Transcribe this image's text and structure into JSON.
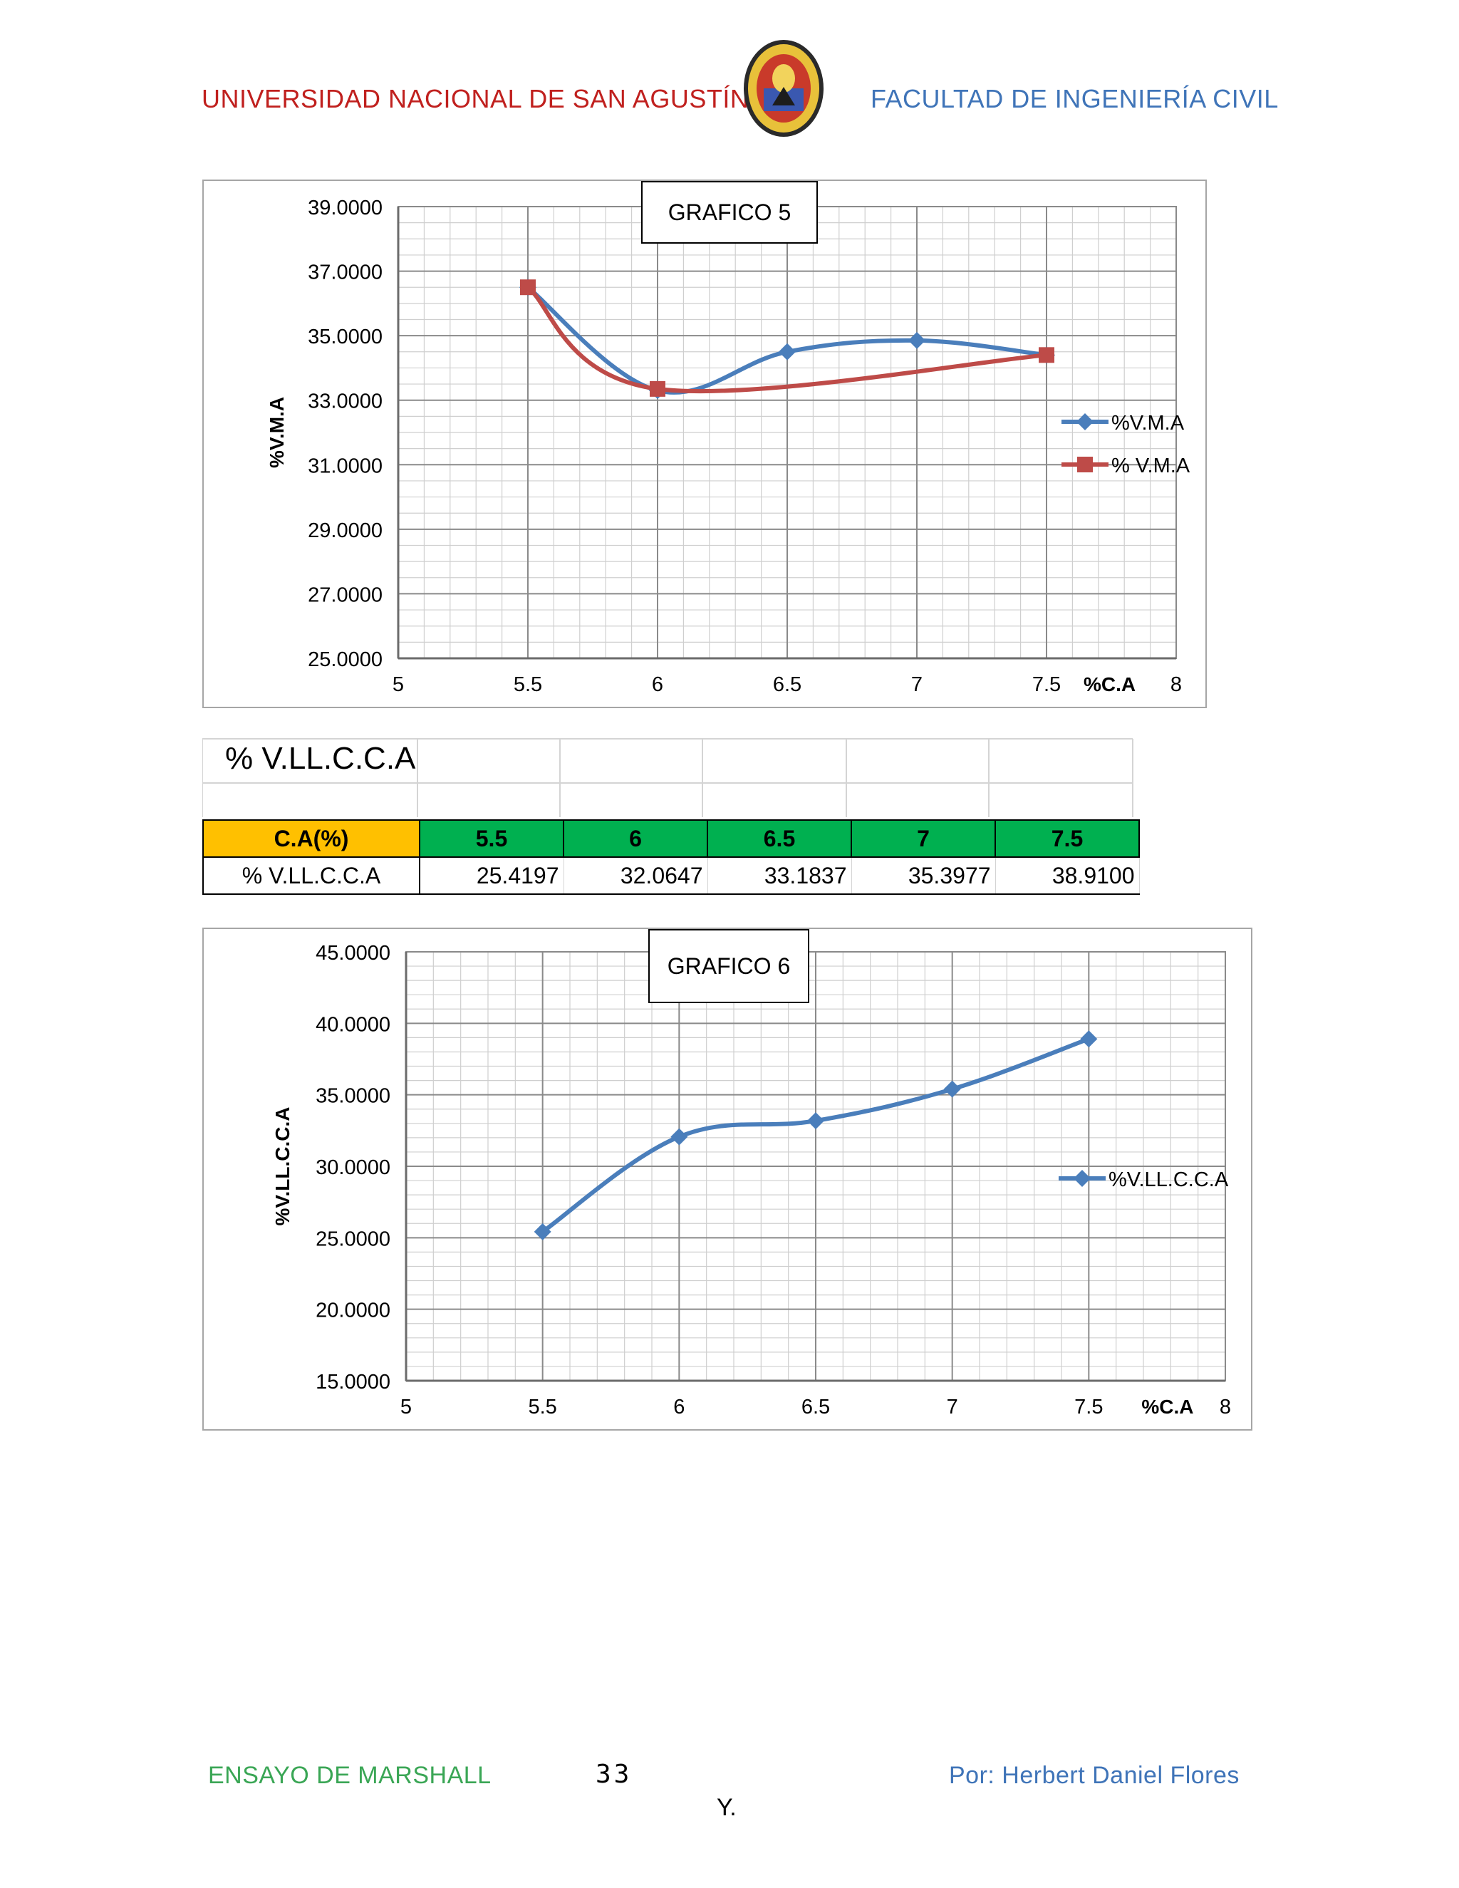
{
  "header": {
    "left": "UNIVERSIDAD NACIONAL DE SAN AGUSTÍN",
    "right": "FACULTAD DE INGENIERÍA CIVIL"
  },
  "section_title": "% V.LL.C.C.A",
  "table": {
    "header_label": "C.A(%)",
    "row_label": "% V.LL.C.C.A",
    "columns": [
      "5.5",
      "6",
      "6.5",
      "7",
      "7.5"
    ],
    "values": [
      "25.4197",
      "32.0647",
      "33.1837",
      "35.3977",
      "38.9100"
    ],
    "colors": {
      "label_bg": "#ffc000",
      "header_bg": "#00b050"
    }
  },
  "footer": {
    "left": "ENSAYO DE MARSHALL",
    "page": "33",
    "right": "Por: Herbert Daniel Flores",
    "cont": "Y."
  },
  "chart_data": [
    {
      "type": "line",
      "title": "GRAFICO 5",
      "xlabel": "%C.A",
      "ylabel": "%V.M.A",
      "xlim": [
        5,
        8
      ],
      "ylim": [
        25,
        39
      ],
      "x_ticks": [
        "5",
        "5.5",
        "6",
        "6.5",
        "7",
        "7.5",
        "8"
      ],
      "y_ticks": [
        "25.0000",
        "27.0000",
        "29.0000",
        "31.0000",
        "33.0000",
        "35.0000",
        "37.0000",
        "39.0000"
      ],
      "grid": true,
      "legend": "right",
      "series": [
        {
          "name": "%V.M.A",
          "color": "#4a7ebb",
          "marker": "diamond",
          "x": [
            5.5,
            6,
            6.5,
            7,
            7.5
          ],
          "y": [
            36.5,
            33.3,
            34.5,
            34.85,
            34.4
          ]
        },
        {
          "name": "% V.M.A",
          "color": "#be4b48",
          "marker": "square",
          "x": [
            5.5,
            6,
            7.5
          ],
          "y": [
            36.5,
            33.35,
            34.4
          ]
        }
      ]
    },
    {
      "type": "line",
      "title": "GRAFICO 6",
      "xlabel": "%C.A",
      "ylabel": "%V.LL.C.C.A",
      "xlim": [
        5,
        8
      ],
      "ylim": [
        15,
        45
      ],
      "x_ticks": [
        "5",
        "5.5",
        "6",
        "6.5",
        "7",
        "7.5",
        "8"
      ],
      "y_ticks": [
        "15.0000",
        "20.0000",
        "25.0000",
        "30.0000",
        "35.0000",
        "40.0000",
        "45.0000"
      ],
      "grid": true,
      "legend": "right",
      "series": [
        {
          "name": "%V.LL.C.C.A",
          "color": "#4a7ebb",
          "marker": "diamond",
          "x": [
            5.5,
            6,
            6.5,
            7,
            7.5
          ],
          "y": [
            25.4197,
            32.0647,
            33.1837,
            35.3977,
            38.91
          ]
        }
      ]
    }
  ]
}
